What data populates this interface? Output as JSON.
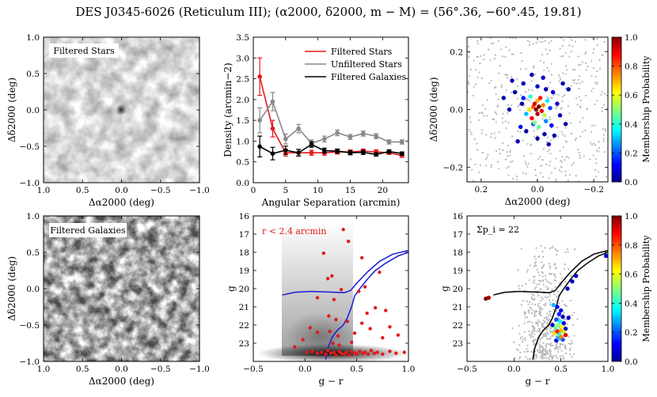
{
  "title": "DES J0345-6026 (Reticulum III); (α2000, δ2000, m − M) = (56°.36, −60°.45, 19.81)",
  "chart_data": [
    {
      "id": "filtered-stars-map",
      "type": "heatmap",
      "label": "Filtered Stars",
      "xlabel": "Δα2000 (deg)",
      "ylabel": "Δδ2000 (deg)",
      "xlim": [
        1.0,
        -1.0
      ],
      "ylim": [
        -1.0,
        1.0
      ],
      "xticks": [
        "1.0",
        "0.5",
        "0.0",
        "−0.5",
        "−1.0"
      ],
      "yticks": [
        "1.0",
        "0.5",
        "0.0",
        "−0.5",
        "−1.0"
      ]
    },
    {
      "id": "density-profile",
      "type": "line",
      "xlabel": "Angular Separation (arcmin)",
      "ylabel": "Density (arcmin−2)",
      "xlim": [
        0,
        24
      ],
      "ylim": [
        0,
        3.5
      ],
      "xticks": [
        "0",
        "5",
        "10",
        "15",
        "20"
      ],
      "yticks": [
        "0.0",
        "0.5",
        "1.0",
        "1.5",
        "2.0",
        "2.5",
        "3.0",
        "3.5"
      ],
      "x": [
        1,
        3,
        5,
        7,
        9,
        11,
        13,
        15,
        17,
        19,
        21,
        23
      ],
      "series": [
        {
          "name": "Filtered Stars",
          "color": "#e31a1c",
          "values": [
            2.55,
            1.3,
            0.72,
            0.72,
            0.72,
            0.72,
            0.74,
            0.74,
            0.76,
            0.74,
            0.72,
            0.65
          ],
          "errors": [
            0.45,
            0.2,
            0.08,
            0.08,
            0.06,
            0.06,
            0.05,
            0.05,
            0.05,
            0.05,
            0.04,
            0.04
          ]
        },
        {
          "name": "Unfiltered Stars",
          "color": "#888888",
          "values": [
            1.5,
            1.95,
            1.05,
            1.3,
            0.95,
            1.05,
            1.2,
            1.1,
            1.18,
            1.12,
            0.98,
            0.98
          ],
          "errors": [
            0.3,
            0.22,
            0.12,
            0.1,
            0.08,
            0.07,
            0.07,
            0.06,
            0.06,
            0.06,
            0.05,
            0.05
          ]
        },
        {
          "name": "Filtered Galaxies",
          "color": "#000000",
          "values": [
            0.87,
            0.7,
            0.78,
            0.72,
            0.92,
            0.77,
            0.76,
            0.72,
            0.73,
            0.68,
            0.75,
            0.7
          ],
          "errors": [
            0.25,
            0.15,
            0.1,
            0.08,
            0.07,
            0.06,
            0.05,
            0.05,
            0.05,
            0.04,
            0.04,
            0.04
          ]
        }
      ]
    },
    {
      "id": "membership-spatial",
      "type": "scatter",
      "xlabel": "Δα2000 (deg)",
      "ylabel": "Δδ2000 (deg)",
      "xlim": [
        0.25,
        -0.25
      ],
      "ylim": [
        -0.25,
        0.25
      ],
      "xticks": [
        "0.2",
        "0.0",
        "−0.2"
      ],
      "yticks": [
        "0.2",
        "0.0",
        "−0.2"
      ],
      "colorbar_label": "Membership Probability",
      "colorbar_ticks": [
        "0.0",
        "0.2",
        "0.4",
        "0.6",
        "0.8",
        "1.0"
      ],
      "members": [
        [
          -0.005,
          0.01,
          1.0
        ],
        [
          0.005,
          0.0,
          0.98
        ],
        [
          0.0,
          -0.015,
          0.95
        ],
        [
          0.01,
          0.02,
          0.92
        ],
        [
          -0.015,
          -0.005,
          0.9
        ],
        [
          0.02,
          -0.03,
          0.88
        ],
        [
          -0.01,
          0.04,
          0.85
        ],
        [
          0.015,
          0.01,
          0.8
        ],
        [
          -0.02,
          0.015,
          0.75
        ],
        [
          0.0,
          0.03,
          0.7
        ],
        [
          0.03,
          0.0,
          0.65
        ],
        [
          -0.025,
          -0.02,
          0.55
        ],
        [
          0.01,
          -0.045,
          0.5
        ],
        [
          -0.005,
          -0.06,
          0.45
        ],
        [
          0.025,
          0.045,
          0.4
        ],
        [
          -0.035,
          0.03,
          0.35
        ],
        [
          0.04,
          -0.015,
          0.3
        ],
        [
          -0.03,
          -0.04,
          0.25
        ],
        [
          0.015,
          -0.05,
          0.2
        ],
        [
          -0.045,
          0.005,
          0.18
        ],
        [
          0.05,
          0.04,
          0.15
        ],
        [
          -0.05,
          -0.055,
          0.12
        ],
        [
          0.06,
          -0.06,
          0.1
        ],
        [
          -0.055,
          0.06,
          0.08
        ],
        [
          0.0,
          0.08,
          0.07
        ],
        [
          -0.07,
          0.02,
          0.06
        ],
        [
          0.09,
          0.1,
          0.05
        ],
        [
          0.05,
          0.09,
          0.05
        ],
        [
          -0.02,
          0.11,
          0.05
        ],
        [
          -0.08,
          -0.02,
          0.04
        ],
        [
          0.07,
          -0.11,
          0.04
        ],
        [
          -0.04,
          -0.12,
          0.04
        ],
        [
          0.1,
          0.0,
          0.04
        ],
        [
          -0.11,
          0.07,
          0.03
        ],
        [
          0.08,
          0.06,
          0.03
        ],
        [
          -0.06,
          -0.09,
          0.03
        ],
        [
          0.02,
          0.12,
          0.03
        ],
        [
          -0.09,
          0.09,
          0.03
        ],
        [
          0.04,
          -0.075,
          0.03
        ],
        [
          -0.025,
          -0.085,
          0.03
        ],
        [
          0.055,
          0.02,
          0.03
        ],
        [
          -0.1,
          -0.05,
          0.02
        ],
        [
          0.12,
          0.04,
          0.02
        ],
        [
          -0.03,
          0.07,
          0.02
        ],
        [
          0.0,
          -0.1,
          0.02
        ]
      ]
    },
    {
      "id": "filtered-galaxies-map",
      "type": "heatmap",
      "label": "Filtered Galaxies",
      "xlabel": "Δα2000 (deg)",
      "ylabel": "Δδ2000 (deg)",
      "xlim": [
        1.0,
        -1.0
      ],
      "ylim": [
        -1.0,
        1.0
      ],
      "xticks": [
        "1.0",
        "0.5",
        "0.0",
        "−0.5",
        "−1.0"
      ],
      "yticks": [
        "1.0",
        "0.5",
        "0.0",
        "−0.5",
        "−1.0"
      ]
    },
    {
      "id": "cmd-r24",
      "type": "scatter",
      "annotation": "r < 2.4 arcmin",
      "xlabel": "g − r",
      "ylabel": "g",
      "xlim": [
        -0.5,
        1.0
      ],
      "ylim": [
        24,
        16
      ],
      "xticks": [
        "−0.5",
        "0.0",
        "0.5",
        "1.0"
      ],
      "yticks": [
        "16",
        "17",
        "18",
        "19",
        "20",
        "21",
        "22",
        "23"
      ],
      "isochrone_color": "#1a1adb",
      "isochrone": [
        [
          0.2,
          23.9
        ],
        [
          0.22,
          23.3
        ],
        [
          0.26,
          22.7
        ],
        [
          0.31,
          22.3
        ],
        [
          0.37,
          22.0
        ],
        [
          0.41,
          21.6
        ],
        [
          0.45,
          21.0
        ],
        [
          0.48,
          20.4
        ],
        [
          0.53,
          20.0
        ],
        [
          0.6,
          19.5
        ],
        [
          0.68,
          19.0
        ],
        [
          0.78,
          18.6
        ],
        [
          0.9,
          18.2
        ],
        [
          1.0,
          18.0
        ]
      ],
      "hb": [
        [
          -0.22,
          20.35
        ],
        [
          -0.1,
          20.2
        ],
        [
          0.05,
          20.15
        ],
        [
          0.2,
          20.18
        ],
        [
          0.3,
          20.2
        ],
        [
          0.38,
          20.22
        ],
        [
          0.44,
          20.1
        ],
        [
          0.5,
          19.7
        ],
        [
          0.6,
          19.1
        ],
        [
          0.72,
          18.5
        ],
        [
          0.85,
          18.1
        ],
        [
          1.0,
          17.9
        ]
      ],
      "stars": [
        [
          0.37,
          16.75
        ],
        [
          0.42,
          17.4
        ],
        [
          0.18,
          18.05
        ],
        [
          0.55,
          18.3
        ],
        [
          0.72,
          19.1
        ],
        [
          0.26,
          19.3
        ],
        [
          0.22,
          19.45
        ],
        [
          0.58,
          19.9
        ],
        [
          0.52,
          20.15
        ],
        [
          0.35,
          20.05
        ],
        [
          0.28,
          20.6
        ],
        [
          0.12,
          20.5
        ],
        [
          0.68,
          21.05
        ],
        [
          0.6,
          21.35
        ],
        [
          0.78,
          21.2
        ],
        [
          0.23,
          21.5
        ],
        [
          0.3,
          21.7
        ],
        [
          0.41,
          21.8
        ],
        [
          0.55,
          21.9
        ],
        [
          0.05,
          22.15
        ],
        [
          0.82,
          22.1
        ],
        [
          0.12,
          22.4
        ],
        [
          0.24,
          22.35
        ],
        [
          0.32,
          22.6
        ],
        [
          0.48,
          22.45
        ],
        [
          0.63,
          22.2
        ],
        [
          0.9,
          22.55
        ],
        [
          -0.02,
          22.8
        ],
        [
          0.75,
          22.7
        ],
        [
          -0.1,
          23.2
        ],
        [
          0.02,
          23.5
        ],
        [
          0.07,
          23.45
        ],
        [
          0.12,
          23.55
        ],
        [
          0.16,
          23.5
        ],
        [
          0.2,
          23.6
        ],
        [
          0.22,
          23.4
        ],
        [
          0.25,
          23.55
        ],
        [
          0.28,
          23.5
        ],
        [
          0.3,
          23.65
        ],
        [
          0.33,
          23.45
        ],
        [
          0.35,
          23.55
        ],
        [
          0.38,
          23.6
        ],
        [
          0.4,
          23.5
        ],
        [
          0.43,
          23.65
        ],
        [
          0.45,
          23.45
        ],
        [
          0.48,
          23.55
        ],
        [
          0.5,
          23.6
        ],
        [
          0.53,
          23.45
        ],
        [
          0.56,
          23.55
        ],
        [
          0.58,
          23.5
        ],
        [
          0.61,
          23.6
        ],
        [
          0.64,
          23.4
        ],
        [
          0.67,
          23.55
        ],
        [
          0.7,
          23.5
        ],
        [
          0.75,
          23.6
        ],
        [
          0.82,
          23.45
        ],
        [
          0.88,
          23.55
        ],
        [
          0.96,
          23.5
        ],
        [
          0.27,
          23.0
        ],
        [
          0.33,
          23.1
        ],
        [
          0.45,
          22.95
        ]
      ]
    },
    {
      "id": "cmd-members",
      "type": "scatter",
      "annotation": "Σp_i = 22",
      "xlabel": "g − r",
      "ylabel": "g",
      "xlim": [
        -0.5,
        1.0
      ],
      "ylim": [
        24,
        16
      ],
      "xticks": [
        "−0.5",
        "0.0",
        "0.5",
        "1.0"
      ],
      "yticks": [
        "16",
        "17",
        "18",
        "19",
        "20",
        "21",
        "22",
        "23"
      ],
      "colorbar_label": "Membership Probability",
      "colorbar_ticks": [
        "0.0",
        "0.2",
        "0.4",
        "0.6",
        "0.8",
        "1.0"
      ],
      "isochrone": [
        [
          0.2,
          23.9
        ],
        [
          0.22,
          23.3
        ],
        [
          0.26,
          22.7
        ],
        [
          0.31,
          22.3
        ],
        [
          0.37,
          22.0
        ],
        [
          0.41,
          21.6
        ],
        [
          0.45,
          21.0
        ],
        [
          0.48,
          20.4
        ],
        [
          0.53,
          20.0
        ],
        [
          0.6,
          19.5
        ],
        [
          0.68,
          19.0
        ],
        [
          0.78,
          18.6
        ],
        [
          0.9,
          18.2
        ],
        [
          1.0,
          18.0
        ]
      ],
      "hb": [
        [
          -0.22,
          20.35
        ],
        [
          -0.1,
          20.2
        ],
        [
          0.05,
          20.15
        ],
        [
          0.2,
          20.18
        ],
        [
          0.3,
          20.2
        ],
        [
          0.38,
          20.22
        ],
        [
          0.44,
          20.1
        ],
        [
          0.5,
          19.7
        ],
        [
          0.6,
          19.1
        ],
        [
          0.72,
          18.5
        ],
        [
          0.85,
          18.1
        ],
        [
          1.0,
          17.9
        ]
      ],
      "members": [
        [
          -0.3,
          20.55,
          1.0
        ],
        [
          -0.27,
          20.5,
          0.95
        ],
        [
          0.98,
          18.2,
          0.1
        ],
        [
          0.62,
          19.6,
          0.05
        ],
        [
          0.66,
          19.3,
          0.08
        ],
        [
          0.57,
          20.0,
          0.05
        ],
        [
          0.42,
          20.9,
          0.3
        ],
        [
          0.46,
          21.0,
          0.12
        ],
        [
          0.5,
          21.2,
          0.1
        ],
        [
          0.48,
          21.4,
          0.15
        ],
        [
          0.52,
          21.55,
          0.05
        ],
        [
          0.45,
          21.7,
          0.2
        ],
        [
          0.49,
          21.8,
          0.35
        ],
        [
          0.53,
          21.9,
          0.1
        ],
        [
          0.47,
          22.0,
          0.5
        ],
        [
          0.51,
          22.1,
          0.6
        ],
        [
          0.44,
          22.15,
          0.45
        ],
        [
          0.5,
          22.3,
          0.7
        ],
        [
          0.46,
          22.35,
          0.85
        ],
        [
          0.53,
          22.4,
          0.55
        ],
        [
          0.48,
          22.5,
          0.4
        ],
        [
          0.43,
          22.45,
          0.65
        ],
        [
          0.55,
          22.55,
          0.9
        ],
        [
          0.5,
          22.65,
          0.75
        ],
        [
          0.47,
          22.7,
          0.3
        ],
        [
          0.52,
          22.8,
          0.2
        ],
        [
          0.45,
          22.85,
          0.1
        ],
        [
          0.55,
          22.2,
          0.05
        ],
        [
          0.41,
          22.0,
          0.05
        ],
        [
          0.58,
          21.6,
          0.05
        ]
      ]
    }
  ]
}
